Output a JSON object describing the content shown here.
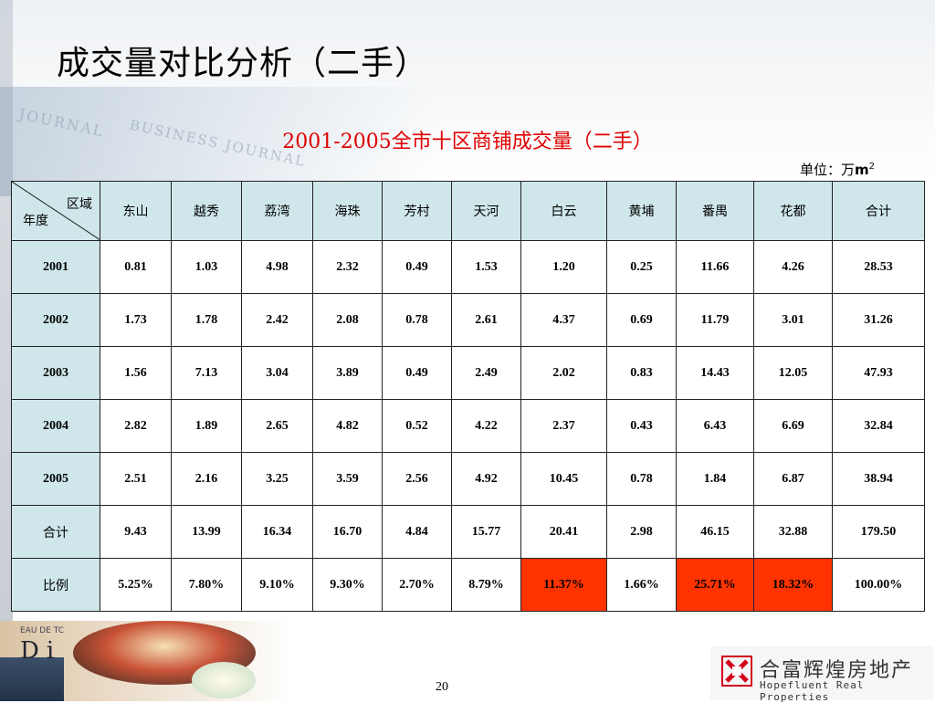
{
  "page": {
    "title": "成交量对比分析（二手）",
    "page_number": "20"
  },
  "table": {
    "title": "2001-2005全市十区商铺成交量（二手）",
    "unit_prefix": "单位：万",
    "unit_main": "m",
    "unit_sup": "2",
    "corner_top": "区域",
    "corner_bottom": "年度",
    "columns": [
      "东山",
      "越秀",
      "荔湾",
      "海珠",
      "芳村",
      "天河",
      "白云",
      "黄埔",
      "番禺",
      "花都",
      "合计"
    ],
    "rows": [
      {
        "label": "2001",
        "values": [
          "0.81",
          "1.03",
          "4.98",
          "2.32",
          "0.49",
          "1.53",
          "1.20",
          "0.25",
          "11.66",
          "4.26",
          "28.53"
        ]
      },
      {
        "label": "2002",
        "values": [
          "1.73",
          "1.78",
          "2.42",
          "2.08",
          "0.78",
          "2.61",
          "4.37",
          "0.69",
          "11.79",
          "3.01",
          "31.26"
        ]
      },
      {
        "label": "2003",
        "values": [
          "1.56",
          "7.13",
          "3.04",
          "3.89",
          "0.49",
          "2.49",
          "2.02",
          "0.83",
          "14.43",
          "12.05",
          "47.93"
        ]
      },
      {
        "label": "2004",
        "values": [
          "2.82",
          "1.89",
          "2.65",
          "4.82",
          "0.52",
          "4.22",
          "2.37",
          "0.43",
          "6.43",
          "6.69",
          "32.84"
        ]
      },
      {
        "label": "2005",
        "values": [
          "2.51",
          "2.16",
          "3.25",
          "3.59",
          "2.56",
          "4.92",
          "10.45",
          "0.78",
          "1.84",
          "6.87",
          "38.94"
        ]
      },
      {
        "label": "合计",
        "values": [
          "9.43",
          "13.99",
          "16.34",
          "16.70",
          "4.84",
          "15.77",
          "20.41",
          "2.98",
          "46.15",
          "32.88",
          "179.50"
        ]
      },
      {
        "label": "比例",
        "values": [
          "5.25%",
          "7.80%",
          "9.10%",
          "9.30%",
          "2.70%",
          "8.79%",
          "11.37%",
          "1.66%",
          "25.71%",
          "18.32%",
          "100.00%"
        ],
        "highlight": [
          6,
          8,
          9
        ]
      }
    ],
    "highlight_color": "#ff3300",
    "header_bg": "#cfe7ea"
  },
  "decor": {
    "watermark_1": "JOURNAL",
    "watermark_2": "BUSINESS JOURNAL",
    "eau_text": "EAU DE TC",
    "di_text": "Di"
  },
  "logo": {
    "cn": "合富辉煌房地产",
    "en": "Hopefluent Real Properties",
    "icon": "hopefluent-logo-icon"
  }
}
